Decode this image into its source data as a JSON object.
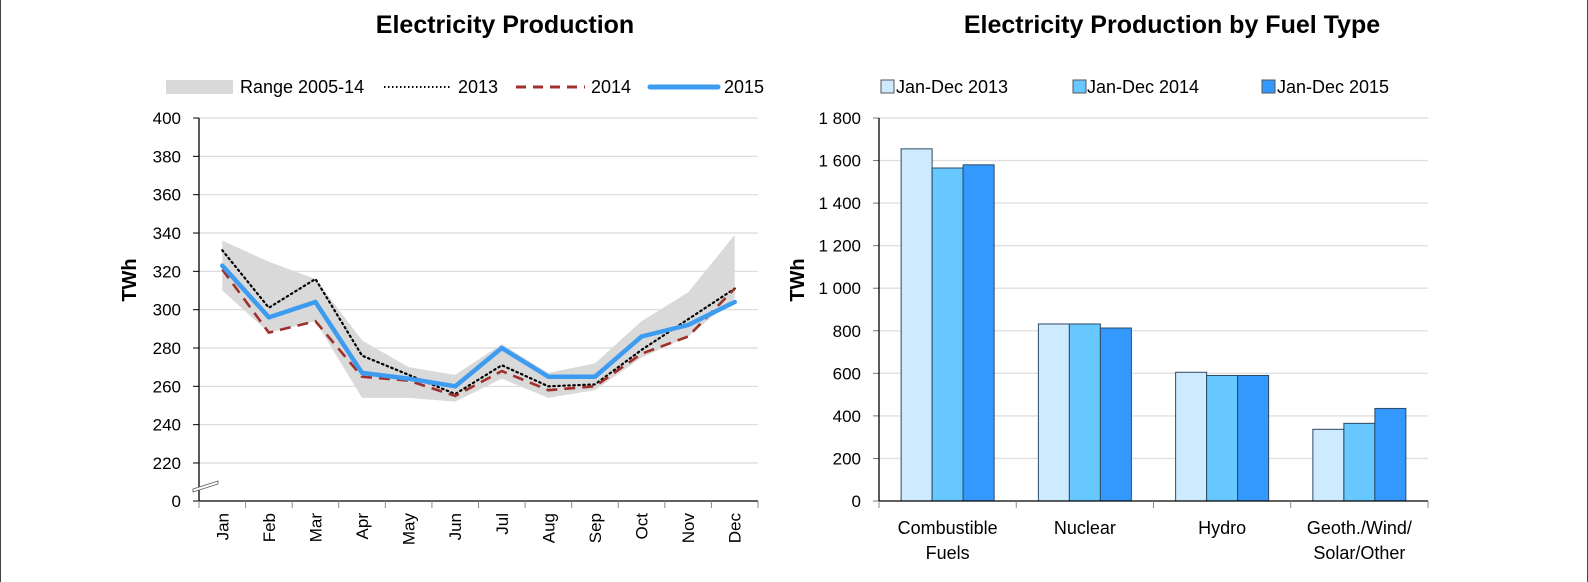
{
  "chart_data": [
    {
      "type": "line",
      "title": "Electricity Production",
      "xlabel": "",
      "ylabel": "TWh",
      "ylim": [
        220,
        400
      ],
      "y_axis_break": true,
      "y_ticks": [
        "0",
        "220",
        "240",
        "260",
        "280",
        "300",
        "320",
        "340",
        "360",
        "380",
        "400"
      ],
      "y_tick_values": [
        220,
        240,
        260,
        280,
        300,
        320,
        340,
        360,
        380,
        400
      ],
      "grid": true,
      "legend_position": "top",
      "categories": [
        "Jan",
        "Feb",
        "Mar",
        "Apr",
        "May",
        "Jun",
        "Jul",
        "Aug",
        "Sep",
        "Oct",
        "Nov",
        "Dec"
      ],
      "range": {
        "name": "Range 2005-14",
        "color": "#d9d9d9",
        "upper": [
          336,
          325,
          316,
          284,
          270,
          266,
          282,
          267,
          272,
          294,
          309,
          339
        ],
        "lower": [
          310,
          288,
          294,
          254,
          254,
          252,
          264,
          254,
          258,
          275,
          286,
          306
        ]
      },
      "series": [
        {
          "name": "2013",
          "style": "dotted",
          "color": "#000000",
          "values": [
            331,
            301,
            316,
            276,
            266,
            256,
            271,
            260,
            261,
            279,
            295,
            311
          ]
        },
        {
          "name": "2014",
          "style": "dashed",
          "color": "#a0302c",
          "values": [
            321,
            288,
            294,
            265,
            263,
            255,
            268,
            258,
            260,
            277,
            286,
            311
          ]
        },
        {
          "name": "2015",
          "style": "solid",
          "color": "#3d9bf0",
          "values": [
            323,
            296,
            304,
            267,
            264,
            260,
            280,
            265,
            265,
            286,
            292,
            304
          ]
        }
      ]
    },
    {
      "type": "bar",
      "title": "Electricity Production by Fuel Type",
      "xlabel": "",
      "ylabel": "TWh",
      "ylim": [
        0,
        1800
      ],
      "y_ticks": [
        "0",
        "200",
        "400",
        "600",
        "800",
        "1 000",
        "1 200",
        "1 400",
        "1 600",
        "1 800"
      ],
      "y_tick_values": [
        0,
        200,
        400,
        600,
        800,
        1000,
        1200,
        1400,
        1600,
        1800
      ],
      "grid": true,
      "legend_position": "top",
      "categories": [
        [
          "Combustible",
          "Fuels"
        ],
        [
          "Nuclear"
        ],
        [
          "Hydro"
        ],
        [
          "Geoth./Wind/",
          "Solar/Other"
        ]
      ],
      "series": [
        {
          "name": "Jan-Dec 2013",
          "color": "#cdeaff",
          "values": [
            1655,
            832,
            605,
            337
          ]
        },
        {
          "name": "Jan-Dec 2014",
          "color": "#66c8ff",
          "values": [
            1565,
            832,
            590,
            365
          ]
        },
        {
          "name": "Jan-Dec 2015",
          "color": "#3399ff",
          "values": [
            1580,
            813,
            590,
            435
          ]
        }
      ]
    }
  ]
}
